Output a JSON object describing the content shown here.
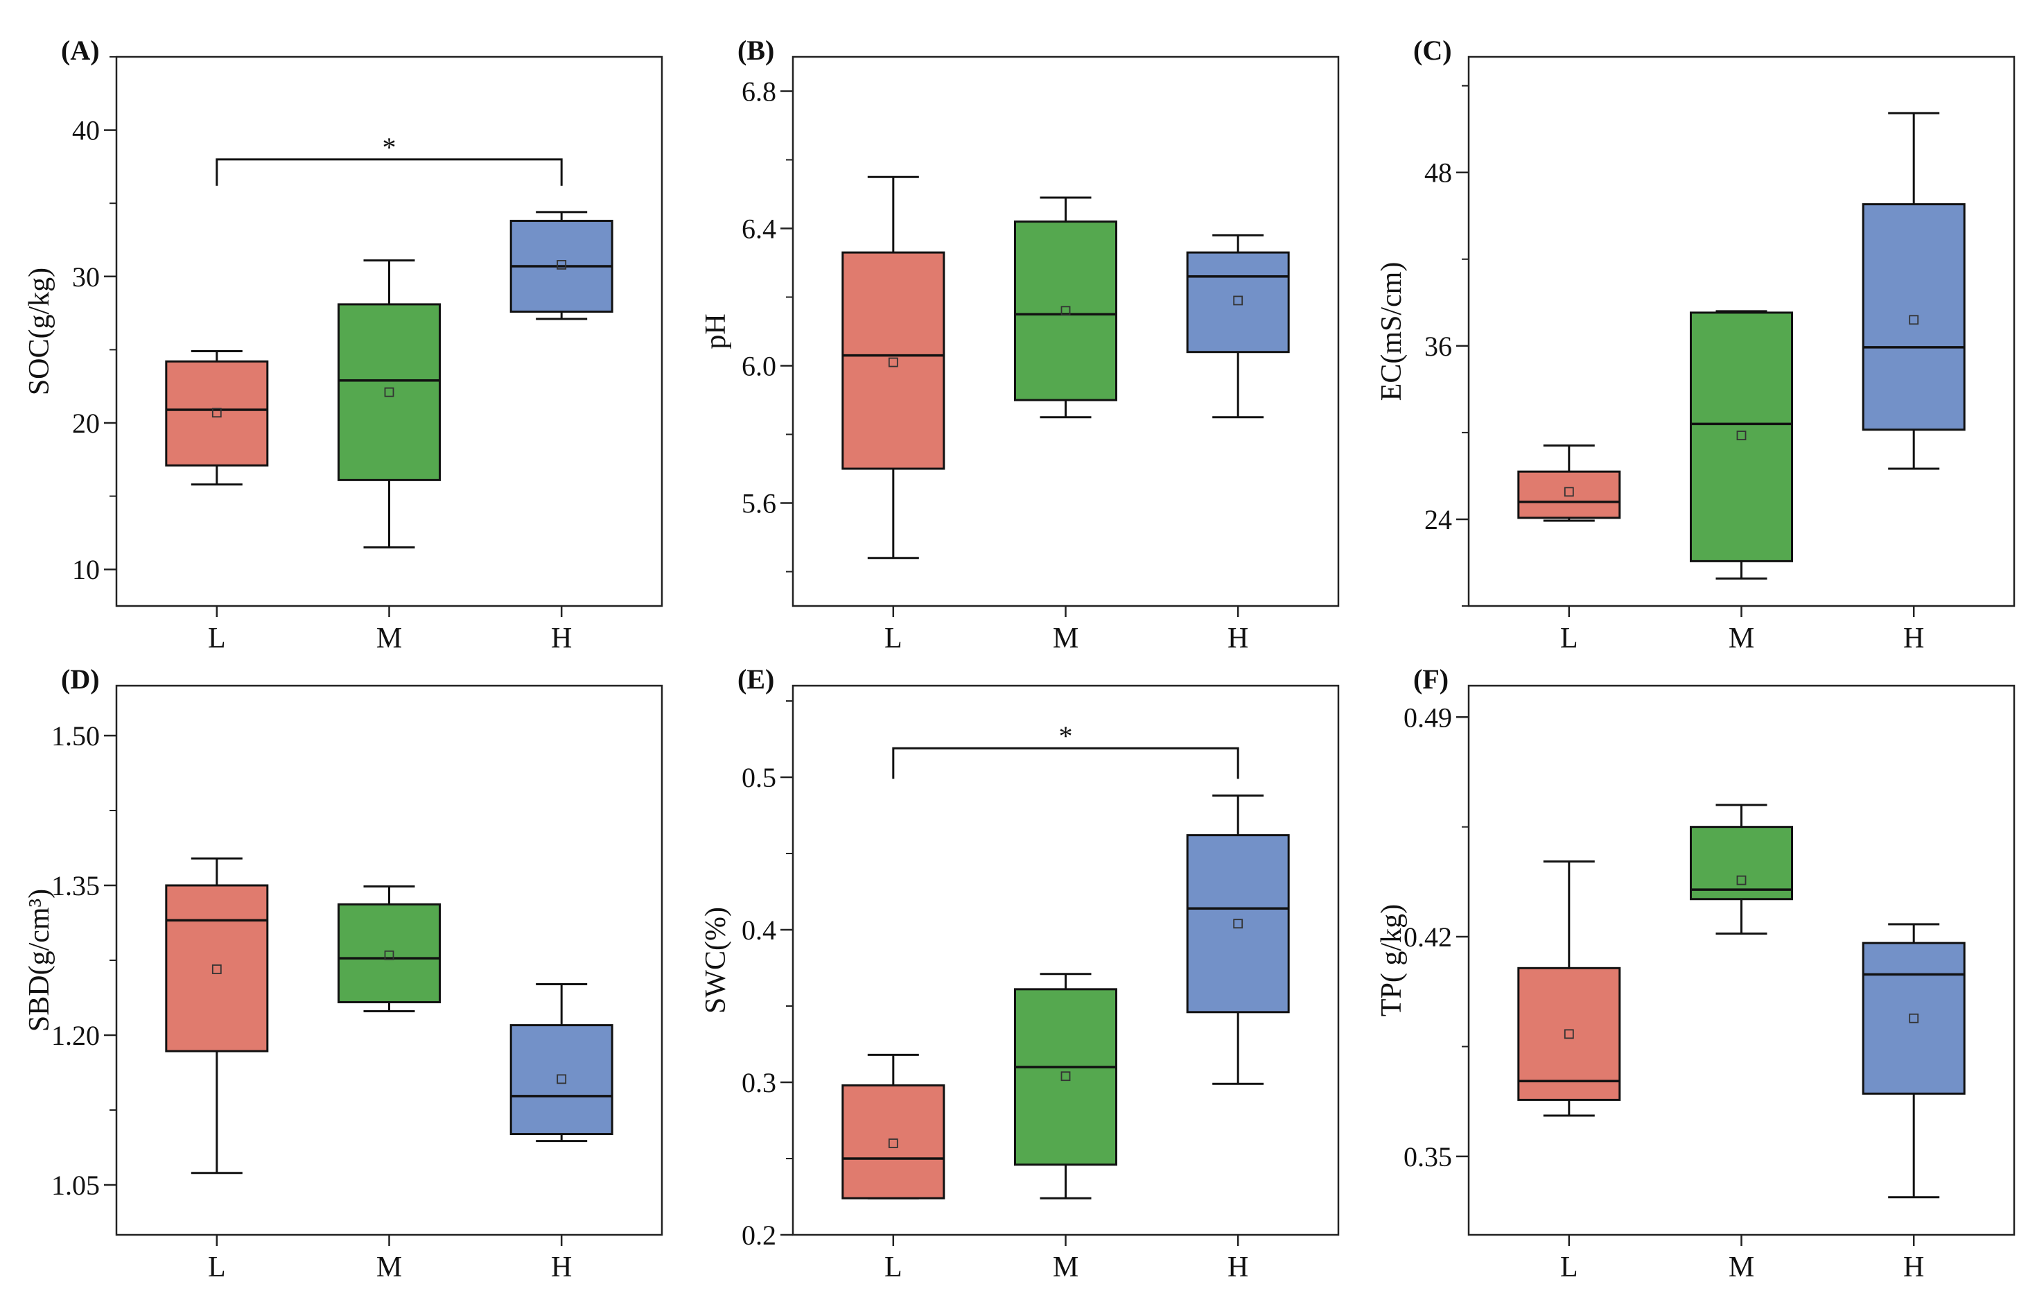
{
  "chart_data": [
    {
      "type": "box",
      "panel_label": "(A)",
      "ylabel": "SOC(g/kg)",
      "categories": [
        "L",
        "M",
        "H"
      ],
      "ylim": [
        7.5,
        45
      ],
      "yticks": [
        10,
        20,
        30,
        40
      ],
      "ytick_labels": [
        "10",
        "20",
        "30",
        "40"
      ],
      "minor_ticks": true,
      "boxes": [
        {
          "category": "L",
          "min": 15.8,
          "q1": 17.1,
          "median": 20.9,
          "q3": 24.2,
          "max": 24.9,
          "mean": 20.7,
          "color": "#E07B6E"
        },
        {
          "category": "M",
          "min": 11.5,
          "q1": 16.1,
          "median": 22.9,
          "q3": 28.1,
          "max": 31.1,
          "mean": 22.1,
          "color": "#55A84F"
        },
        {
          "category": "H",
          "min": 27.1,
          "q1": 27.6,
          "median": 30.7,
          "q3": 33.8,
          "max": 34.4,
          "mean": 30.8,
          "color": "#7391C8"
        }
      ],
      "significance": [
        {
          "from": "L",
          "to": "H",
          "y": 38.0,
          "drop_to": 36.2,
          "label": "*"
        }
      ]
    },
    {
      "type": "box",
      "panel_label": "(B)",
      "ylabel": "pH",
      "categories": [
        "L",
        "M",
        "H"
      ],
      "ylim": [
        5.3,
        6.9
      ],
      "yticks": [
        5.6,
        6.0,
        6.4,
        6.8
      ],
      "ytick_labels": [
        "5.6",
        "6.0",
        "6.4",
        "6.8"
      ],
      "minor_ticks": true,
      "boxes": [
        {
          "category": "L",
          "min": 5.44,
          "q1": 5.7,
          "median": 6.03,
          "q3": 6.33,
          "max": 6.55,
          "mean": 6.01,
          "color": "#E07B6E"
        },
        {
          "category": "M",
          "min": 5.85,
          "q1": 5.9,
          "median": 6.15,
          "q3": 6.42,
          "max": 6.49,
          "mean": 6.16,
          "color": "#55A84F"
        },
        {
          "category": "H",
          "min": 5.85,
          "q1": 6.04,
          "median": 6.26,
          "q3": 6.33,
          "max": 6.38,
          "mean": 6.19,
          "color": "#7391C8"
        }
      ],
      "significance": []
    },
    {
      "type": "box",
      "panel_label": "(C)",
      "ylabel": "EC(mS/cm)",
      "categories": [
        "L",
        "M",
        "H"
      ],
      "ylim": [
        18,
        56
      ],
      "yticks": [
        24,
        36,
        48
      ],
      "ytick_labels": [
        "24",
        "36",
        "48"
      ],
      "minor_ticks": true,
      "boxes": [
        {
          "category": "L",
          "min": 23.9,
          "q1": 24.1,
          "median": 25.2,
          "q3": 27.3,
          "max": 29.1,
          "mean": 25.9,
          "color": "#E07B6E"
        },
        {
          "category": "M",
          "min": 19.9,
          "q1": 21.1,
          "median": 30.6,
          "q3": 38.3,
          "max": 38.4,
          "mean": 29.8,
          "color": "#55A84F"
        },
        {
          "category": "H",
          "min": 27.5,
          "q1": 30.2,
          "median": 35.9,
          "q3": 45.8,
          "max": 52.1,
          "mean": 37.8,
          "color": "#7391C8"
        }
      ],
      "significance": []
    },
    {
      "type": "box",
      "panel_label": "(D)",
      "ylabel": "SBD(g/cm³)",
      "categories": [
        "L",
        "M",
        "H"
      ],
      "ylim": [
        1.0,
        1.55
      ],
      "yticks": [
        1.05,
        1.2,
        1.35,
        1.5
      ],
      "ytick_labels": [
        "1.05",
        "1.20",
        "1.35",
        "1.50"
      ],
      "minor_ticks": true,
      "boxes": [
        {
          "category": "L",
          "min": 1.062,
          "q1": 1.184,
          "median": 1.315,
          "q3": 1.35,
          "max": 1.377,
          "mean": 1.266,
          "color": "#E07B6E"
        },
        {
          "category": "M",
          "min": 1.224,
          "q1": 1.233,
          "median": 1.277,
          "q3": 1.331,
          "max": 1.349,
          "mean": 1.28,
          "color": "#55A84F"
        },
        {
          "category": "H",
          "min": 1.094,
          "q1": 1.101,
          "median": 1.139,
          "q3": 1.21,
          "max": 1.251,
          "mean": 1.156,
          "color": "#7391C8"
        }
      ],
      "significance": []
    },
    {
      "type": "box",
      "panel_label": "(E)",
      "ylabel": "SWC(%)",
      "categories": [
        "L",
        "M",
        "H"
      ],
      "ylim": [
        0.2,
        0.56
      ],
      "yticks": [
        0.2,
        0.3,
        0.4,
        0.5
      ],
      "ytick_labels": [
        "0.2",
        "0.3",
        "0.4",
        "0.5"
      ],
      "minor_ticks": true,
      "boxes": [
        {
          "category": "L",
          "min": 0.224,
          "q1": 0.224,
          "median": 0.25,
          "q3": 0.298,
          "max": 0.318,
          "mean": 0.26,
          "color": "#E07B6E"
        },
        {
          "category": "M",
          "min": 0.224,
          "q1": 0.246,
          "median": 0.31,
          "q3": 0.361,
          "max": 0.371,
          "mean": 0.304,
          "color": "#55A84F"
        },
        {
          "category": "H",
          "min": 0.299,
          "q1": 0.346,
          "median": 0.414,
          "q3": 0.462,
          "max": 0.488,
          "mean": 0.404,
          "color": "#7391C8"
        }
      ],
      "significance": [
        {
          "from": "L",
          "to": "H",
          "y": 0.519,
          "drop_to": 0.499,
          "label": "*"
        }
      ]
    },
    {
      "type": "box",
      "panel_label": "(F)",
      "ylabel": "TP( g/kg)",
      "categories": [
        "L",
        "M",
        "H"
      ],
      "ylim": [
        0.325,
        0.5
      ],
      "yticks": [
        0.35,
        0.42,
        0.49
      ],
      "ytick_labels": [
        "0.35",
        "0.42",
        "0.49"
      ],
      "minor_ticks": true,
      "boxes": [
        {
          "category": "L",
          "min": 0.363,
          "q1": 0.368,
          "median": 0.374,
          "q3": 0.41,
          "max": 0.444,
          "mean": 0.389,
          "color": "#E07B6E"
        },
        {
          "category": "M",
          "min": 0.421,
          "q1": 0.432,
          "median": 0.435,
          "q3": 0.455,
          "max": 0.462,
          "mean": 0.438,
          "color": "#55A84F"
        },
        {
          "category": "H",
          "min": 0.337,
          "q1": 0.37,
          "median": 0.408,
          "q3": 0.418,
          "max": 0.424,
          "mean": 0.394,
          "color": "#7391C8"
        }
      ],
      "significance": []
    }
  ]
}
